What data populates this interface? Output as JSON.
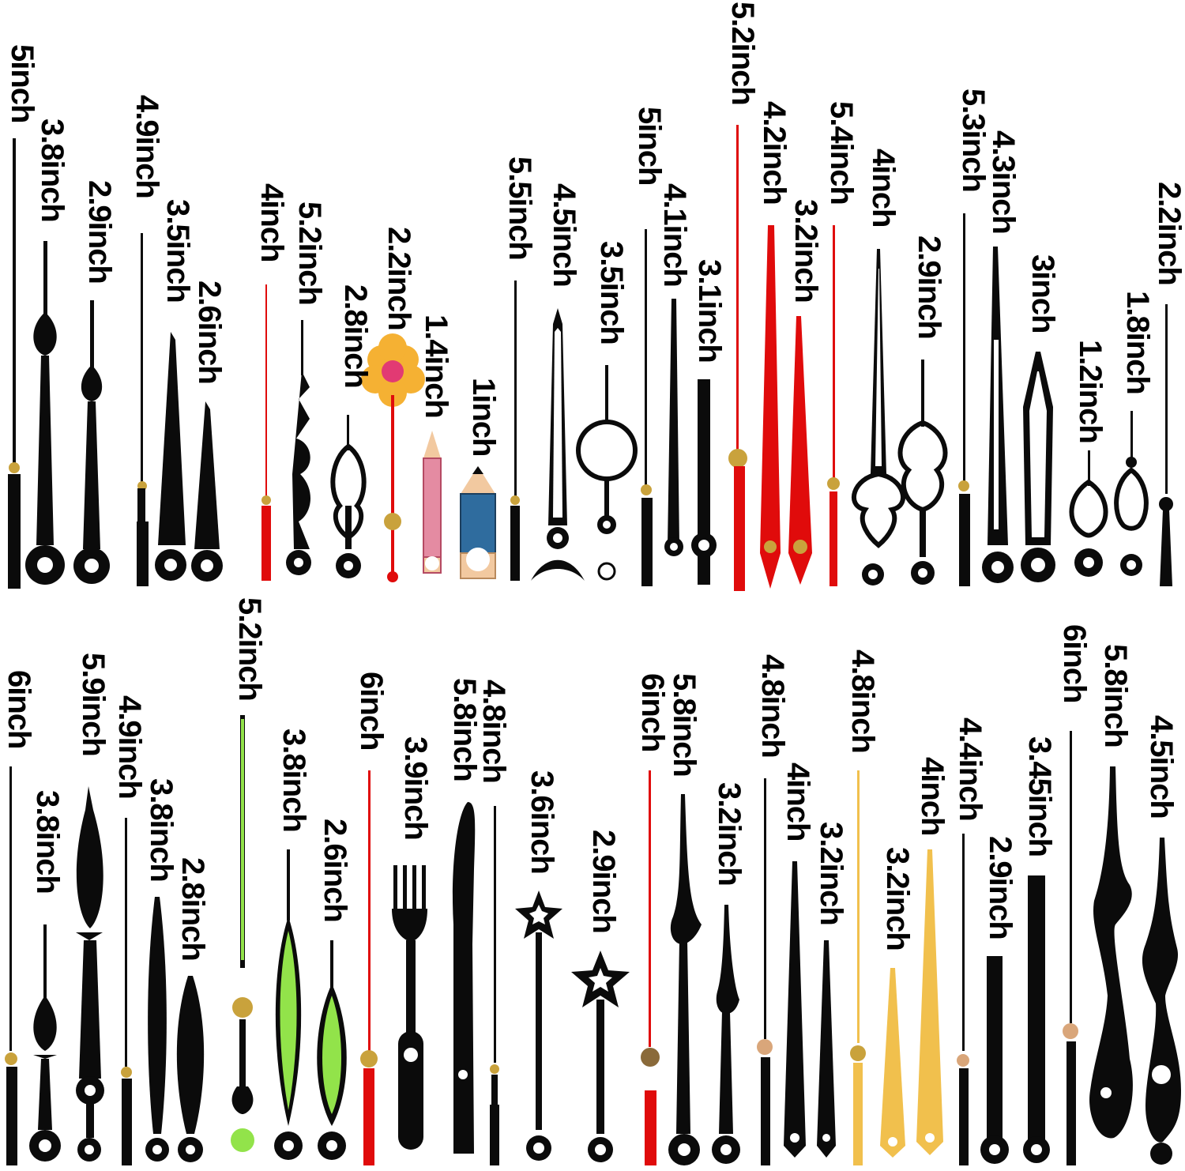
{
  "colors": {
    "black": "#0b0b0b",
    "red": "#e00b0b",
    "green": "#92e34a",
    "gold": "#f1c04d",
    "brass": "#c9a23c",
    "pencil_pink": "#e48ba2",
    "pencil_blue": "#2f6c9e",
    "flower_orange": "#f5b133",
    "flower_center": "#e23a73"
  },
  "row1": {
    "labels": [
      "5inch",
      "3.8inch",
      "2.9inch",
      "4.9inch",
      "3.5inch",
      "2.6inch",
      "4inch",
      "5.2inch",
      "2.8inch",
      "2.2inch",
      "1.4inch",
      "1inch",
      "5.5inch",
      "4.5inch",
      "3.5inch",
      "5inch",
      "4.1inch",
      "3.1inch",
      "5.2inch",
      "4.2inch",
      "3.2inch",
      "5.4inch",
      "4inch",
      "2.9inch",
      "5.3inch",
      "4.3inch",
      "3inch",
      "1.2inch",
      "1.8inch",
      "2.2inch"
    ]
  },
  "row2": {
    "labels": [
      "6inch",
      "3.8inch",
      "5.9inch",
      "4.9inch",
      "3.8inch",
      "2.8inch",
      "5.2inch",
      "3.8inch",
      "2.6inch",
      "6inch",
      "3.9inch",
      "5.8inch",
      "4.8inch",
      "3.6inch",
      "2.9inch",
      "6inch",
      "5.8inch",
      "3.2inch",
      "4.8inch",
      "4inch",
      "3.2inch",
      "4.8inch",
      "3.2inch",
      "4inch",
      "4.4inch",
      "2.9inch",
      "3.45inch",
      "6inch",
      "5.8inch",
      "4.5inch"
    ]
  }
}
